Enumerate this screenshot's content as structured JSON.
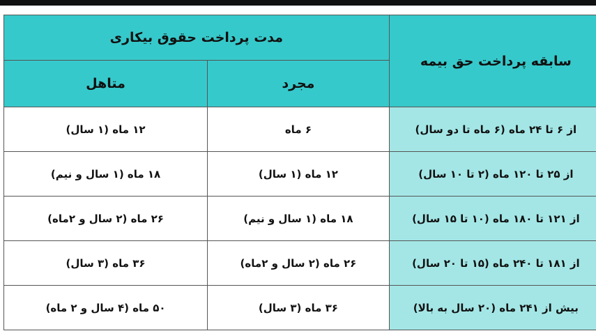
{
  "header": {
    "insurance_history": "سابقه پرداخت حق بیمه",
    "benefit_duration": "مدت پرداخت حقوق بیکاری",
    "single": "مجرد",
    "married": "متاهل"
  },
  "rows": [
    {
      "range": "از ۶ تا ۲۴ ماه (۶ ماه تا دو سال)",
      "single": "۶ ماه",
      "married": "۱۲ ماه (۱ سال)"
    },
    {
      "range": "از ۲۵ تا ۱۲۰ ماه (۲ تا ۱۰ سال)",
      "single": "۱۲ ماه (۱ سال)",
      "married": "۱۸ ماه (۱ سال و نیم)"
    },
    {
      "range": "از ۱۲۱ تا ۱۸۰ ماه (۱۰ تا ۱۵ سال)",
      "single": "۱۸ ماه (۱ سال و نیم)",
      "married": "۲۶ ماه (۲ سال و ۲ماه)"
    },
    {
      "range": "از ۱۸۱ تا ۲۴۰ ماه (۱۵ تا ۲۰ سال)",
      "single": "۲۶ ماه (۲ سال و ۲ماه)",
      "married": "۳۶ ماه (۳ سال)"
    },
    {
      "range": "بیش از ۲۴۱ ماه (۲۰ سال به بالا)",
      "single": "۳۶ ماه (۳ سال)",
      "married": "۵۰ ماه (۴ سال و ۲ ماه)"
    }
  ],
  "colors": {
    "header": "#36c9cb",
    "range_column": "#a4e6e6"
  }
}
